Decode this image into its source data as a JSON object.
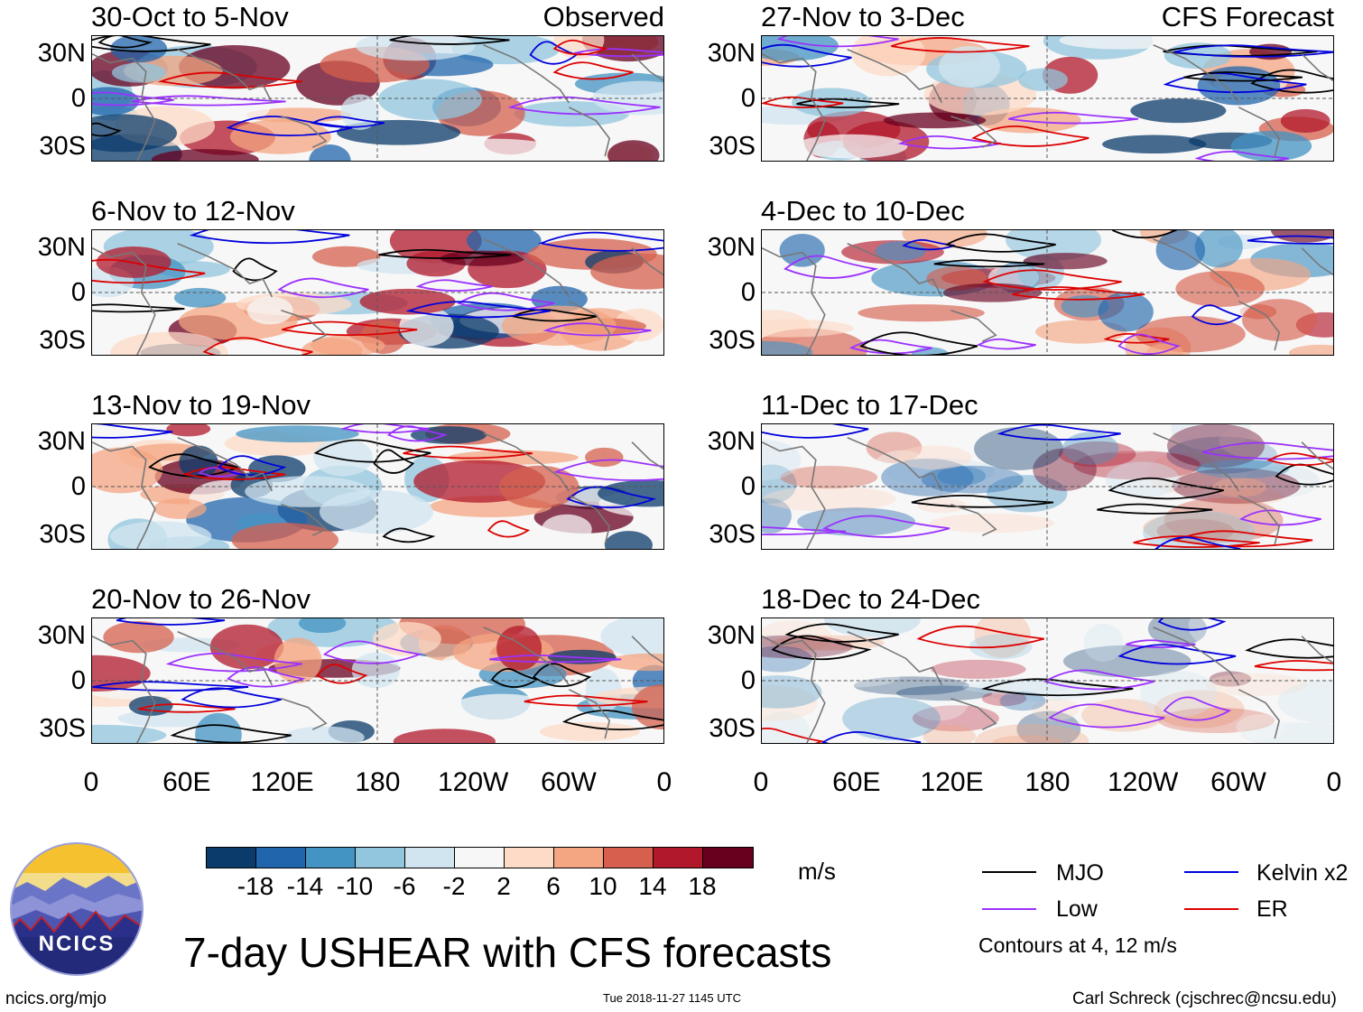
{
  "panels": [
    {
      "title": "30-Oct to 5-Nov",
      "tag": "Observed"
    },
    {
      "title": "27-Nov to 3-Dec",
      "tag": "CFS Forecast"
    },
    {
      "title": "6-Nov to 12-Nov",
      "tag": ""
    },
    {
      "title": "4-Dec to 10-Dec",
      "tag": ""
    },
    {
      "title": "13-Nov to 19-Nov",
      "tag": ""
    },
    {
      "title": "11-Dec to 17-Dec",
      "tag": ""
    },
    {
      "title": "20-Nov to 26-Nov",
      "tag": ""
    },
    {
      "title": "18-Dec to 24-Dec",
      "tag": ""
    }
  ],
  "lat_labels": [
    "30N",
    "0",
    "30S"
  ],
  "lon_labels": [
    "0",
    "60E",
    "120E",
    "180",
    "120W",
    "60W",
    "0"
  ],
  "colorbar": {
    "labels": [
      "-18",
      "-14",
      "-10",
      "-6",
      "-2",
      "2",
      "6",
      "10",
      "14",
      "18"
    ],
    "colors": [
      "#0b3b6b",
      "#2166ac",
      "#4393c3",
      "#92c5de",
      "#d1e5f0",
      "#f7f7f7",
      "#fddbc7",
      "#f4a582",
      "#d6604d",
      "#b2182b",
      "#67001f"
    ],
    "unit": "m/s"
  },
  "legend": {
    "items": [
      {
        "label": "MJO",
        "color": "#000000"
      },
      {
        "label": "Kelvin x2",
        "color": "#0000dd"
      },
      {
        "label": "Low",
        "color": "#9b30ff"
      },
      {
        "label": "ER",
        "color": "#dd0000"
      }
    ],
    "note": "Contours at 4, 12 m/s"
  },
  "main_title": "7-day USHEAR with CFS forecasts",
  "logo_text": "NCICS",
  "footer": {
    "website": "ncics.org/mjo",
    "timestamp": "Tue 2018-11-27 1145 UTC",
    "author": "Carl Schreck (cjschrec@ncsu.edu)"
  }
}
